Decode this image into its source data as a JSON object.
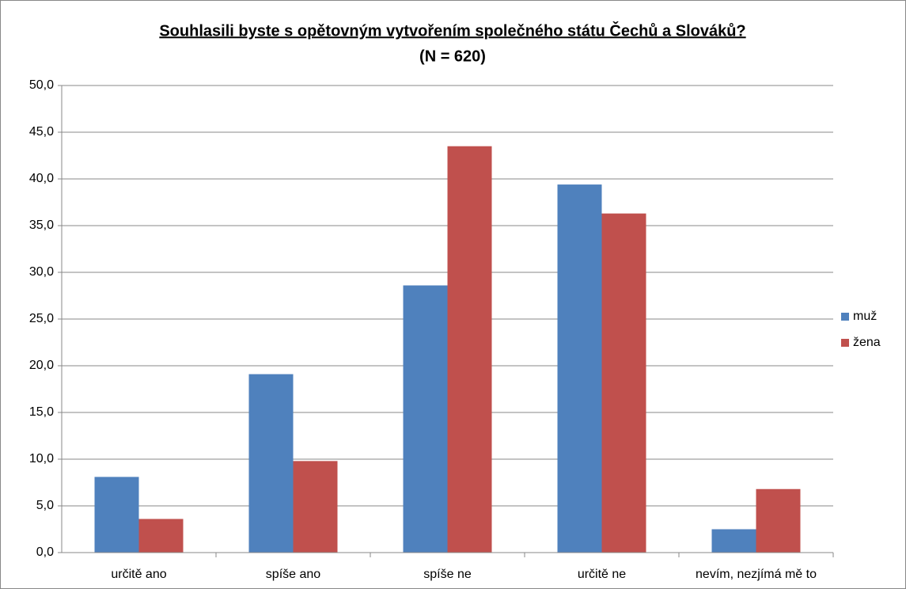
{
  "chart_data": {
    "type": "bar",
    "title": "Souhlasili byste s opětovným vytvořením společného státu Čechů a Slováků?",
    "subtitle": "(N = 620)",
    "categories": [
      "určitě ano",
      "spíše ano",
      "spíše ne",
      "určitě ne",
      "nevím, nezjímá mě to"
    ],
    "series": [
      {
        "name": "muž",
        "color": "#4f81bd",
        "values": [
          8.1,
          19.1,
          28.6,
          39.4,
          2.5
        ]
      },
      {
        "name": "žena",
        "color": "#c0504d",
        "values": [
          3.6,
          9.8,
          43.5,
          36.3,
          6.8
        ]
      }
    ],
    "ylim": [
      0,
      50
    ],
    "yticks": [
      {
        "value": 0,
        "label": "0,0"
      },
      {
        "value": 5,
        "label": "5,0"
      },
      {
        "value": 10,
        "label": "10,0"
      },
      {
        "value": 15,
        "label": "15,0"
      },
      {
        "value": 20,
        "label": "20,0"
      },
      {
        "value": 25,
        "label": "25,0"
      },
      {
        "value": 30,
        "label": "30,0"
      },
      {
        "value": 35,
        "label": "35,0"
      },
      {
        "value": 40,
        "label": "40,0"
      },
      {
        "value": 45,
        "label": "45,0"
      },
      {
        "value": 50,
        "label": "50,0"
      }
    ],
    "grid": true,
    "legend": "right"
  }
}
